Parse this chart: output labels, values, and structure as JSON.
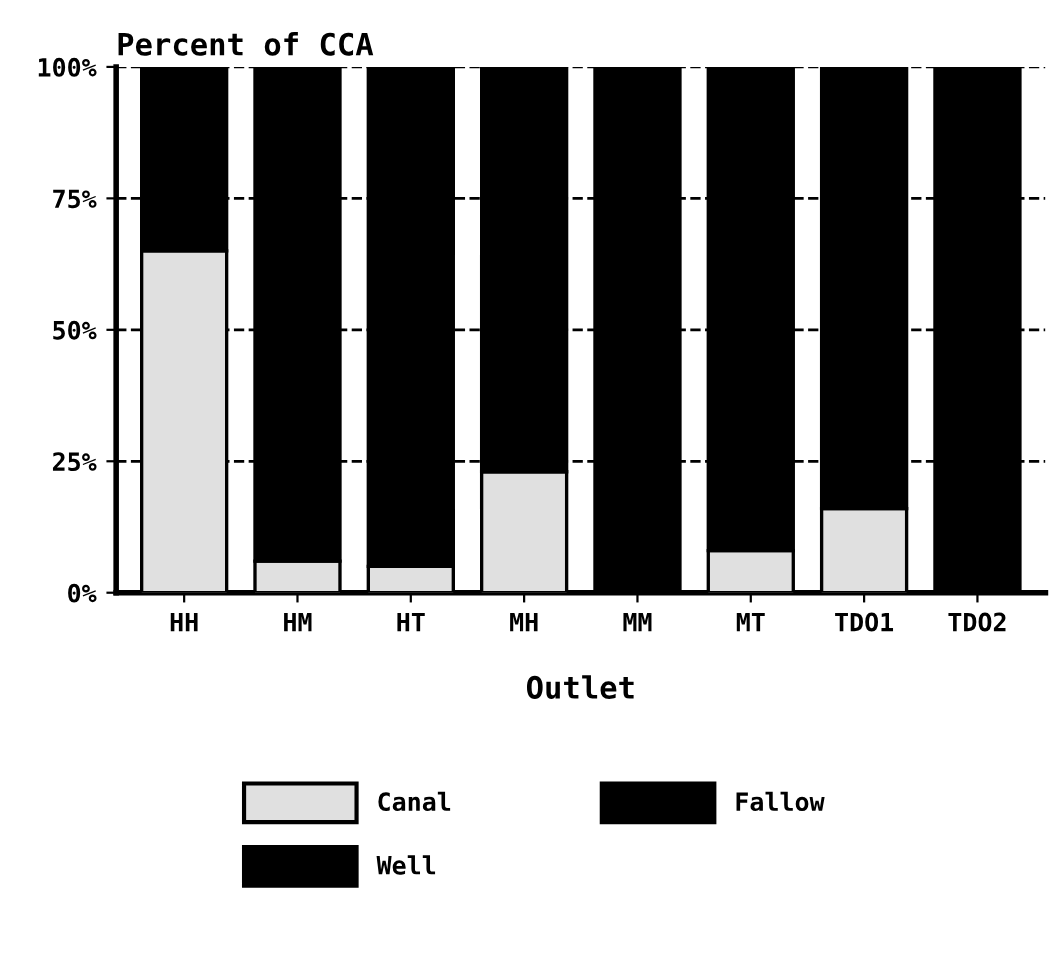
{
  "chart_data": {
    "type": "bar",
    "stacked": true,
    "ylabel": "Percent of CCA",
    "xlabel": "Outlet",
    "categories": [
      "HH",
      "HM",
      "HT",
      "MH",
      "MM",
      "MT",
      "TDO1",
      "TDO2"
    ],
    "series": [
      {
        "name": "Canal",
        "color": "#e0e0e0",
        "values": [
          65,
          6,
          5,
          23,
          0,
          8,
          16,
          0
        ]
      },
      {
        "name": "Well",
        "color": "#000000",
        "values": [
          35,
          94,
          95,
          77,
          100,
          92,
          84,
          100
        ]
      },
      {
        "name": "Fallow",
        "color": "#000000",
        "values": [
          0,
          0,
          0,
          0,
          0,
          0,
          0,
          0
        ]
      }
    ],
    "ylim": [
      0,
      100
    ],
    "yticks": [
      {
        "value": 0,
        "label": "0%"
      },
      {
        "value": 25,
        "label": "25%"
      },
      {
        "value": 50,
        "label": "50%"
      },
      {
        "value": 75,
        "label": "75%"
      },
      {
        "value": 100,
        "label": "100%"
      }
    ],
    "grid": "y",
    "legend": "bottom"
  }
}
